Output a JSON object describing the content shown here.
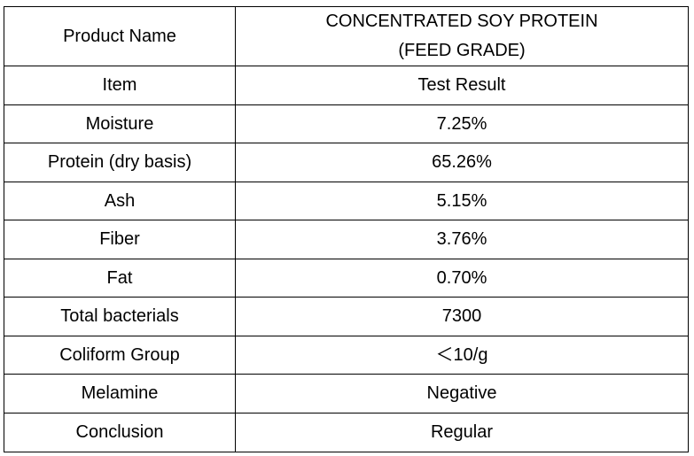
{
  "table": {
    "header": {
      "label": "Product Name",
      "value_line1": "CONCENTRATED SOY PROTEIN",
      "value_line2": "(FEED GRADE)"
    },
    "rows": [
      {
        "item": "Item",
        "result": "Test Result"
      },
      {
        "item": "Moisture",
        "result": "7.25%"
      },
      {
        "item": "Protein (dry basis)",
        "result": "65.26%"
      },
      {
        "item": "Ash",
        "result": "5.15%"
      },
      {
        "item": "Fiber",
        "result": "3.76%"
      },
      {
        "item": "Fat",
        "result": "0.70%"
      },
      {
        "item": "Total bacterials",
        "result": "7300"
      },
      {
        "item": "Coliform Group",
        "result": "＜10/g"
      },
      {
        "item": "Melamine",
        "result": "Negative"
      },
      {
        "item": "Conclusion",
        "result": "Regular"
      }
    ]
  }
}
